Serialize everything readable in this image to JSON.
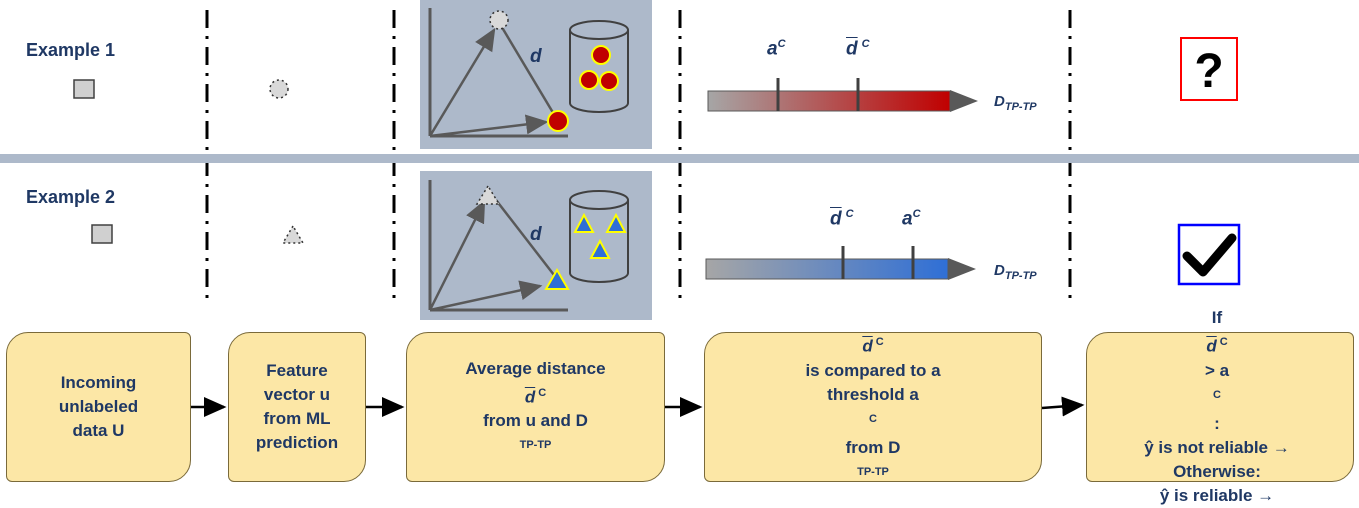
{
  "examples": [
    {
      "label": "Example 1"
    },
    {
      "label": "Example 2"
    }
  ],
  "plot_labels": {
    "distance": "d"
  },
  "scale_labels": {
    "threshold": "a",
    "average": "d",
    "sup": "C",
    "axis_main": "D",
    "axis_sub": "TP-TP"
  },
  "steps": [
    {
      "lines": [
        "Incoming",
        "unlabeled",
        "data U"
      ]
    },
    {
      "lines": [
        "Feature",
        "vector u",
        "from ML",
        "prediction"
      ]
    },
    {
      "line1_pre": "Average distance ",
      "line2_pre": "from u and D",
      "line2_sub": "TP-TP"
    },
    {
      "line1_post": " is compared to a",
      "line2_pre": "threshold a",
      "line2_mid": " from D",
      "line2_sub": "TP-TP"
    },
    {
      "line1_pre": "If ",
      "line1_post": " > a",
      "line1_end": ":",
      "line2": "ŷ is not reliable →",
      "line3": "Otherwise:",
      "line4": "ŷ is reliable →"
    }
  ],
  "colors": {
    "accent": "#1f3864",
    "box_fill": "#fce7a6",
    "panel": "#adb9ca",
    "red": "#c00000",
    "blue": "#2f6fd6"
  }
}
